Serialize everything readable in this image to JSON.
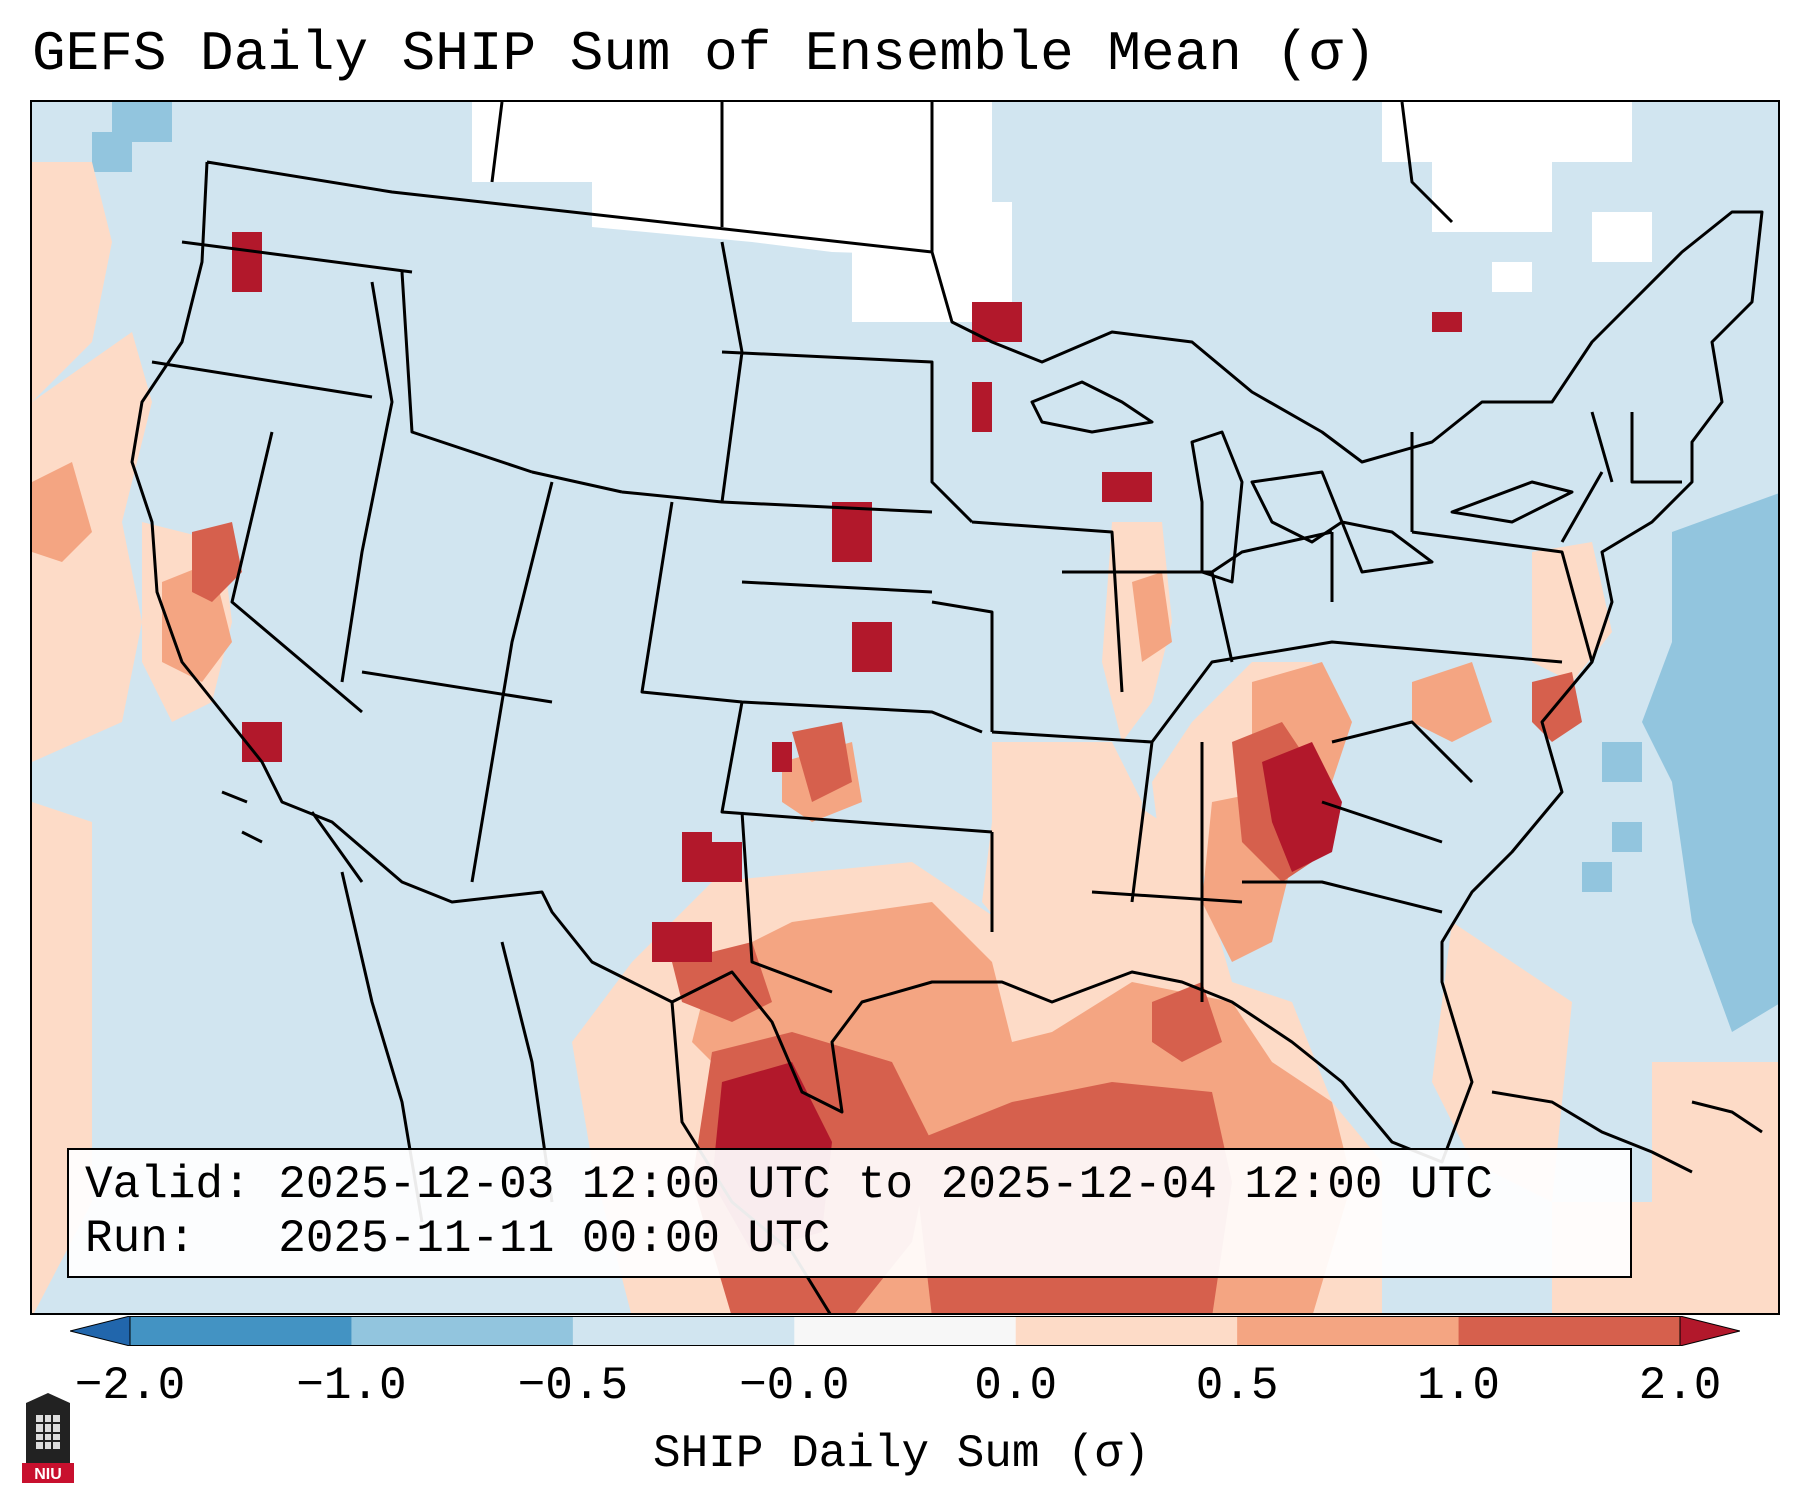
{
  "title": "GEFS Daily SHIP Sum of Ensemble Mean (σ)",
  "info": {
    "valid_label": "Valid:",
    "valid_value": "2025-12-03 12:00 UTC to 2025-12-04 12:00 UTC",
    "run_label": "Run:",
    "run_value": "2025-11-11 00:00 UTC"
  },
  "colorbar": {
    "label": "SHIP Daily Sum (σ)",
    "ticks": [
      "−2.0",
      "−1.0",
      "−0.5",
      "−0.0",
      "0.0",
      "0.5",
      "1.0",
      "2.0"
    ],
    "colors": [
      "#4393c3",
      "#92c5de",
      "#d1e5f0",
      "#f7f7f7",
      "#fddbc7",
      "#f4a582",
      "#d6604d",
      "#b2182b"
    ],
    "extend_low": "#2166ac",
    "extend_high": "#b2182b"
  },
  "map": {
    "region": "Contiguous United States",
    "projection": "Lambert Conformal",
    "borders": "state and country outlines",
    "background_color": "#d1e5f0"
  },
  "logo": {
    "text": "NIU"
  }
}
